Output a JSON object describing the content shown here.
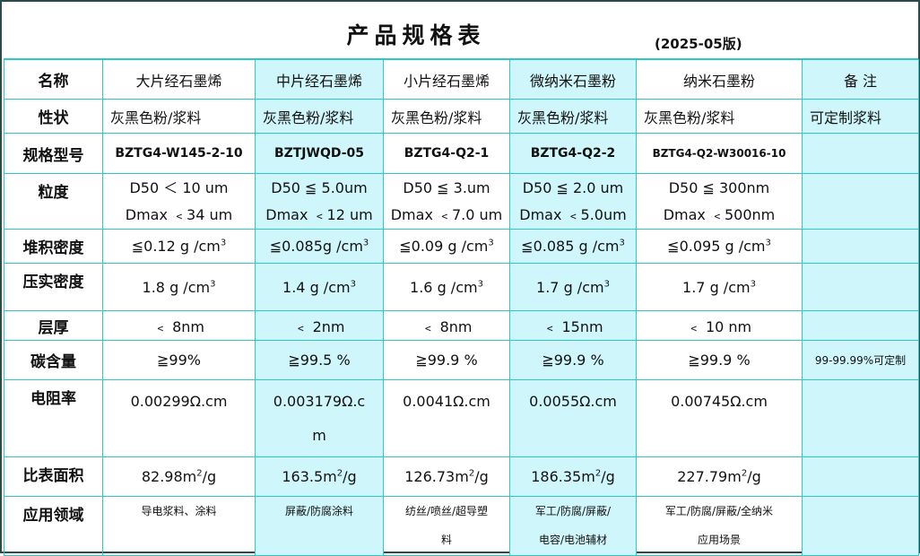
{
  "title": "产品规格表",
  "edition": "(2025-05版)",
  "columns": [
    "名称",
    "大片经石墨烯",
    "中片经石墨烯",
    "小片经石墨烯",
    "微纳米石墨粉",
    "纳米石墨粉",
    "备  注"
  ],
  "rows": {
    "property": {
      "label": "性状",
      "values": [
        "灰黑色粉/浆料",
        "灰黑色粉/浆料",
        "灰黑色粉/浆料",
        "灰黑色粉/浆料",
        "灰黑色粉/浆料"
      ],
      "note": "可定制浆料"
    },
    "model": {
      "label": "规格型号",
      "values": [
        "BZTG4-W145-2-10",
        "BZTJWQD-05",
        "BZTG4-Q2-1",
        "BZTG4-Q2-2",
        "BZTG4-Q2-W30016-10"
      ]
    },
    "particle": {
      "label": "粒度",
      "d50": [
        "D50 ＜ 10 um",
        "D50 ≦ 5.0um",
        "D50 ≦ 3.um",
        "D50 ≦ 2.0 um",
        "D50 ≦ 300nm"
      ],
      "dmax": [
        "Dmax ﹤34 um",
        "Dmax ﹤12 um",
        "Dmax ﹤7.0 um",
        "Dmax ﹤5.0um",
        "Dmax ﹤500nm"
      ]
    },
    "bulk": {
      "label": "堆积密度",
      "values": [
        "≦0.12 g /cm",
        "≦0.085g /cm",
        "≦0.09 g /cm",
        "≦0.085 g /cm",
        "≦0.095 g /cm"
      ],
      "exp": "3"
    },
    "tap": {
      "label": "压实密度",
      "values": [
        "1.8 g /cm",
        "1.4 g /cm",
        "1.6 g /cm",
        "1.7 g /cm",
        "1.7 g /cm"
      ],
      "exp": "3"
    },
    "thickness": {
      "label": "层厚",
      "values": [
        "﹤ 8nm",
        "﹤ 2nm",
        "﹤ 8nm",
        "﹤ 15nm",
        "﹤ 10 nm"
      ]
    },
    "carbon": {
      "label": "碳含量",
      "values": [
        "≧99%",
        "≧99.5 %",
        "≧99.9 %",
        "≧99.9 %",
        "≧99.9 %"
      ],
      "note": "99-99.99%可定制"
    },
    "resistivity": {
      "label": "电阻率",
      "values": [
        "0.00299Ω.cm",
        "0.003179Ω.c",
        "0.0041Ω.cm",
        "0.0055Ω.cm",
        "0.00745Ω.cm"
      ],
      "wrap": "m"
    },
    "surface": {
      "label": "比表面积",
      "values": [
        "82.98m",
        "163.5m",
        "126.73m",
        "186.35m",
        "227.79m"
      ],
      "exp": "2",
      "unit": "/g"
    },
    "applications": {
      "label": "应用领域",
      "line1": [
        "导电浆料、涂料",
        "屏蔽/防腐涂料",
        "纺丝/喷丝/超导塑",
        "军工/防腐/屏蔽/",
        "军工/防腐/屏蔽/全纳米"
      ],
      "line2": [
        "",
        "",
        "料",
        "电容/电池辅材",
        "应用场景"
      ]
    }
  }
}
